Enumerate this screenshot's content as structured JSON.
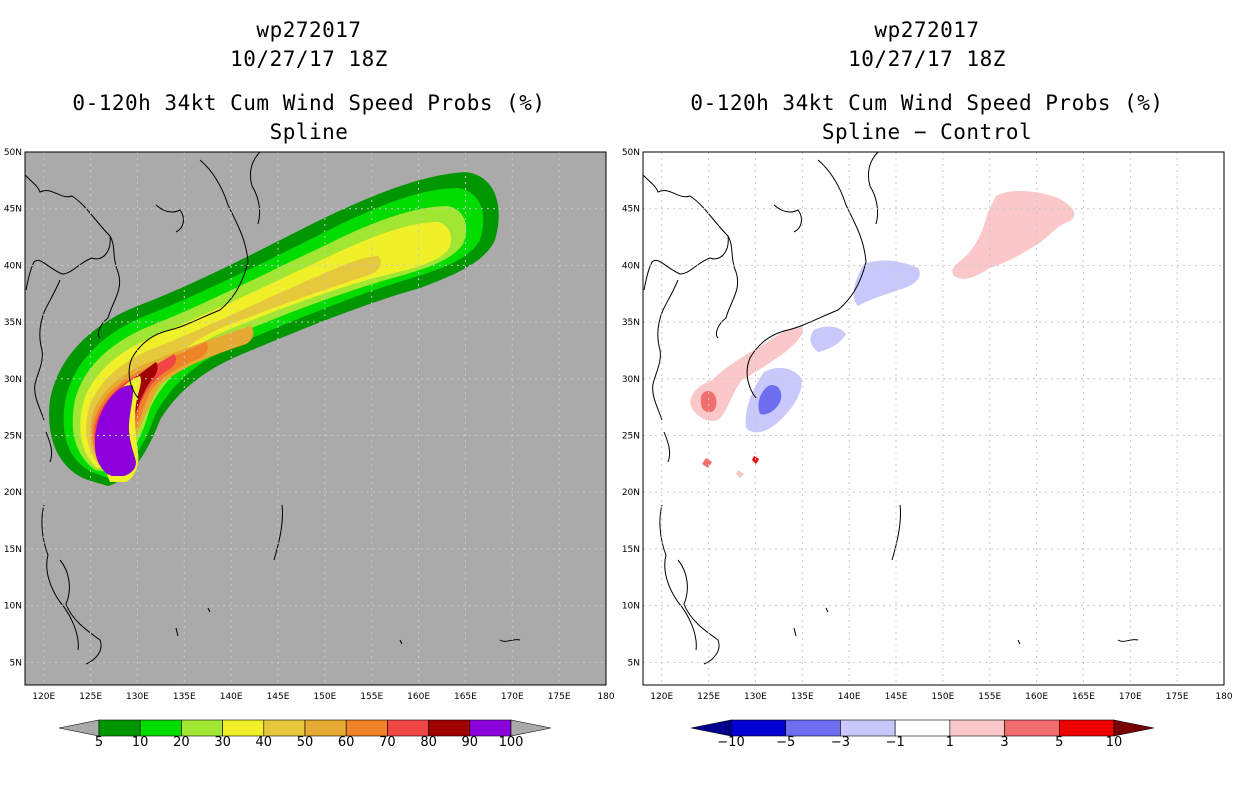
{
  "left": {
    "storm_id": "wp272017",
    "datetime": "10/27/17 18Z",
    "product": "0-120h 34kt Cum Wind Speed Probs (%)",
    "subtitle": "Spline",
    "background_color": "#aaaaaa",
    "colorbar": {
      "colors": [
        "#009600",
        "#00dc00",
        "#a0e632",
        "#f0f028",
        "#e6c83c",
        "#e6aa32",
        "#f08228",
        "#f04646",
        "#a00000",
        "#8c00dc"
      ],
      "end_left_color": "#aaaaaa",
      "end_right_color": "#aaaaaa",
      "labels": [
        "5",
        "10",
        "20",
        "30",
        "40",
        "50",
        "60",
        "70",
        "80",
        "90",
        "100"
      ]
    }
  },
  "right": {
    "storm_id": "wp272017",
    "datetime": "10/27/17 18Z",
    "product": "0-120h 34kt Cum Wind Speed Probs (%)",
    "subtitle": "Spline − Control",
    "background_color": "#ffffff",
    "colorbar": {
      "colors": [
        "#0000d2",
        "#6e6ef0",
        "#c8c8fa",
        "#ffffff",
        "#fac8c8",
        "#f06e6e",
        "#f00000"
      ],
      "end_left_color": "#00008c",
      "end_right_color": "#780000",
      "labels": [
        "−10",
        "−5",
        "−3",
        "−1",
        "1",
        "3",
        "5",
        "10"
      ]
    }
  },
  "map": {
    "lat_labels": [
      "50N",
      "45N",
      "40N",
      "35N",
      "30N",
      "25N",
      "20N",
      "15N",
      "10N",
      "5N"
    ],
    "lon_labels": [
      "120E",
      "125E",
      "130E",
      "135E",
      "140E",
      "145E",
      "150E",
      "155E",
      "160E",
      "165E",
      "170E",
      "175E",
      "180"
    ]
  }
}
